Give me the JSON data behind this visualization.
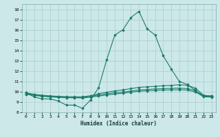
{
  "xlabel": "Humidex (Indice chaleur)",
  "background_color": "#cce8e8",
  "grid_color": "#aacccc",
  "line_color": "#1a7a6a",
  "xlim": [
    -0.5,
    23.5
  ],
  "ylim": [
    8,
    18.5
  ],
  "yticks": [
    8,
    9,
    10,
    11,
    12,
    13,
    14,
    15,
    16,
    17,
    18
  ],
  "xticks": [
    0,
    1,
    2,
    3,
    4,
    5,
    6,
    7,
    8,
    9,
    10,
    11,
    12,
    13,
    14,
    15,
    16,
    17,
    18,
    19,
    20,
    21,
    22,
    23
  ],
  "xtick_labels": [
    "0",
    "1",
    "2",
    "3",
    "4",
    "5",
    "6",
    "7",
    "8",
    "9",
    "10",
    "11",
    "12",
    "13",
    "14",
    "15",
    "16",
    "17",
    "18",
    "19",
    "20",
    "21",
    "22",
    "23"
  ],
  "series": [
    {
      "x": [
        0,
        1,
        2,
        3,
        4,
        5,
        6,
        7,
        8,
        9,
        10,
        11,
        12,
        13,
        14,
        15,
        16,
        17,
        18,
        19,
        20,
        21,
        22,
        23
      ],
      "y": [
        9.9,
        9.5,
        9.3,
        9.3,
        9.1,
        8.7,
        8.7,
        8.4,
        9.2,
        10.4,
        13.1,
        15.5,
        16.0,
        17.2,
        17.8,
        16.1,
        15.5,
        13.5,
        12.2,
        11.0,
        10.7,
        10.1,
        9.6,
        9.6
      ]
    },
    {
      "x": [
        0,
        1,
        2,
        3,
        4,
        5,
        6,
        7,
        8,
        9,
        10,
        11,
        12,
        13,
        14,
        15,
        16,
        17,
        18,
        19,
        20,
        21,
        22,
        23
      ],
      "y": [
        9.9,
        9.75,
        9.65,
        9.6,
        9.55,
        9.52,
        9.5,
        9.5,
        9.62,
        9.8,
        9.95,
        10.08,
        10.18,
        10.3,
        10.42,
        10.48,
        10.52,
        10.58,
        10.62,
        10.68,
        10.62,
        10.35,
        9.65,
        9.58
      ]
    },
    {
      "x": [
        0,
        1,
        2,
        3,
        4,
        5,
        6,
        7,
        8,
        9,
        10,
        11,
        12,
        13,
        14,
        15,
        16,
        17,
        18,
        19,
        20,
        21,
        22,
        23
      ],
      "y": [
        9.82,
        9.7,
        9.6,
        9.55,
        9.5,
        9.47,
        9.46,
        9.45,
        9.55,
        9.68,
        9.8,
        9.9,
        9.97,
        10.07,
        10.17,
        10.22,
        10.27,
        10.3,
        10.33,
        10.35,
        10.3,
        10.1,
        9.58,
        9.52
      ]
    },
    {
      "x": [
        0,
        1,
        2,
        3,
        4,
        5,
        6,
        7,
        8,
        9,
        10,
        11,
        12,
        13,
        14,
        15,
        16,
        17,
        18,
        19,
        20,
        21,
        22,
        23
      ],
      "y": [
        9.75,
        9.65,
        9.55,
        9.5,
        9.45,
        9.42,
        9.41,
        9.4,
        9.48,
        9.58,
        9.68,
        9.78,
        9.85,
        9.95,
        10.05,
        10.09,
        10.13,
        10.16,
        10.18,
        10.2,
        10.16,
        9.97,
        9.52,
        9.47
      ]
    }
  ]
}
